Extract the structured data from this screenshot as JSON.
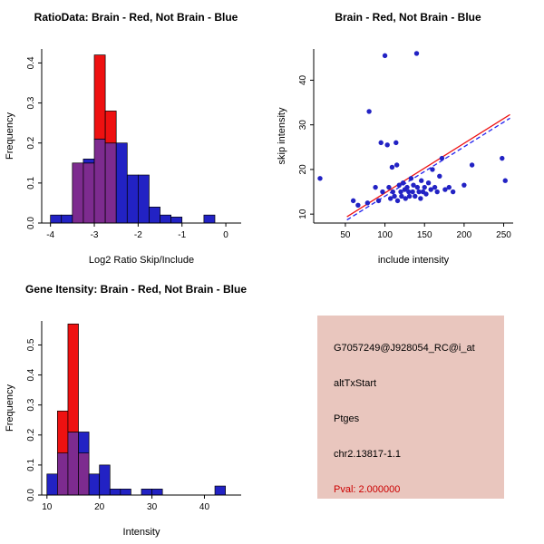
{
  "chart_data": [
    {
      "type": "bar",
      "subtype": "overlaid-histogram",
      "title": "RatioData: Brain - Red, Not Brain - Blue",
      "xlabel": "Log2 Ratio Skip/Include",
      "ylabel": "Frequency",
      "xlim": [
        -4.2,
        0.35
      ],
      "ylim": [
        0,
        0.435
      ],
      "xticks": [
        -4,
        -3,
        -2,
        -1,
        0
      ],
      "xtick_labels": [
        "-4",
        "-3",
        "-2",
        "-1",
        "0"
      ],
      "yticks": [
        0,
        0.1,
        0.2,
        0.3,
        0.4
      ],
      "ytick_labels": [
        "0.0",
        "0.1",
        "0.2",
        "0.3",
        "0.4"
      ],
      "bin_width": 0.25,
      "overlap_color": "#7D2B8F",
      "grid": false,
      "series": [
        {
          "name": "Not Brain",
          "color": "#2222C4",
          "bins": [
            [
              -4.0,
              0.02
            ],
            [
              -3.75,
              0.02
            ],
            [
              -3.5,
              0.15
            ],
            [
              -3.25,
              0.16
            ],
            [
              -3.0,
              0.21
            ],
            [
              -2.75,
              0.2
            ],
            [
              -2.5,
              0.2
            ],
            [
              -2.25,
              0.12
            ],
            [
              -2.0,
              0.12
            ],
            [
              -1.75,
              0.04
            ],
            [
              -1.5,
              0.02
            ],
            [
              -1.25,
              0.015
            ],
            [
              -0.5,
              0.02
            ]
          ]
        },
        {
          "name": "Brain",
          "color": "#EE1111",
          "bins": [
            [
              -3.5,
              0.15
            ],
            [
              -3.25,
              0.15
            ],
            [
              -3.0,
              0.42
            ],
            [
              -2.75,
              0.28
            ]
          ]
        }
      ]
    },
    {
      "type": "scatter",
      "title": "Brain - Red, Not Brain - Blue",
      "xlabel": "include intensity",
      "ylabel": "skip intensity",
      "xlim": [
        10,
        262
      ],
      "ylim": [
        8,
        47
      ],
      "xticks": [
        50,
        100,
        150,
        200,
        250
      ],
      "xtick_labels": [
        "50",
        "100",
        "150",
        "200",
        "250"
      ],
      "yticks": [
        10,
        20,
        30,
        40
      ],
      "ytick_labels": [
        "10",
        "20",
        "30",
        "40"
      ],
      "point_color": "#2222C4",
      "grid": false,
      "points": [
        [
          18,
          18
        ],
        [
          60,
          13
        ],
        [
          66,
          12
        ],
        [
          78,
          12.5
        ],
        [
          80,
          33
        ],
        [
          88,
          16
        ],
        [
          92,
          13
        ],
        [
          95,
          26
        ],
        [
          97,
          15
        ],
        [
          100,
          45.5
        ],
        [
          103,
          25.5
        ],
        [
          105,
          16
        ],
        [
          107,
          13.5
        ],
        [
          109,
          20.5
        ],
        [
          110,
          15
        ],
        [
          112,
          14
        ],
        [
          114,
          26
        ],
        [
          115,
          21
        ],
        [
          116,
          13
        ],
        [
          118,
          16.5
        ],
        [
          120,
          15
        ],
        [
          121,
          14
        ],
        [
          123,
          17
        ],
        [
          125,
          15.5
        ],
        [
          126,
          13.5
        ],
        [
          128,
          16
        ],
        [
          130,
          15
        ],
        [
          131,
          14
        ],
        [
          133,
          18
        ],
        [
          135,
          15
        ],
        [
          136,
          16.5
        ],
        [
          138,
          14
        ],
        [
          140,
          46
        ],
        [
          141,
          16
        ],
        [
          143,
          15
        ],
        [
          145,
          13.5
        ],
        [
          146,
          17.5
        ],
        [
          148,
          15
        ],
        [
          150,
          16
        ],
        [
          152,
          14.5
        ],
        [
          155,
          17
        ],
        [
          158,
          15.5
        ],
        [
          160,
          20
        ],
        [
          163,
          16
        ],
        [
          166,
          15
        ],
        [
          169,
          18.5
        ],
        [
          172,
          22.5
        ],
        [
          176,
          15.5
        ],
        [
          181,
          16
        ],
        [
          186,
          15
        ],
        [
          200,
          16.5
        ],
        [
          210,
          21
        ],
        [
          248,
          22.5
        ],
        [
          252,
          17.5
        ]
      ],
      "lines": [
        {
          "name": "brain-fit-line",
          "color": "#EE1111",
          "dash": "",
          "x1": 52,
          "y1": 9.4,
          "x2": 258,
          "y2": 32.3
        },
        {
          "name": "notbrain-fit-line",
          "color": "#2222EE",
          "dash": "5,3",
          "x1": 52,
          "y1": 8.7,
          "x2": 258,
          "y2": 31.5
        }
      ]
    },
    {
      "type": "bar",
      "subtype": "overlaid-histogram",
      "title": "Gene Itensity: Brain - Red, Not Brain - Blue",
      "xlabel": "Intensity",
      "ylabel": "Frequency",
      "xlim": [
        9,
        47
      ],
      "ylim": [
        0,
        0.58
      ],
      "xticks": [
        10,
        20,
        30,
        40
      ],
      "xtick_labels": [
        "10",
        "20",
        "30",
        "40"
      ],
      "yticks": [
        0,
        0.1,
        0.2,
        0.3,
        0.4,
        0.5
      ],
      "ytick_labels": [
        "0.0",
        "0.1",
        "0.2",
        "0.3",
        "0.4",
        "0.5"
      ],
      "bin_width": 2,
      "overlap_color": "#7D2B8F",
      "grid": false,
      "series": [
        {
          "name": "Not Brain",
          "color": "#2222C4",
          "bins": [
            [
              10,
              0.07
            ],
            [
              12,
              0.14
            ],
            [
              14,
              0.21
            ],
            [
              16,
              0.21
            ],
            [
              18,
              0.07
            ],
            [
              20,
              0.1
            ],
            [
              22,
              0.02
            ],
            [
              24,
              0.02
            ],
            [
              28,
              0.02
            ],
            [
              30,
              0.02
            ],
            [
              42,
              0.03
            ]
          ]
        },
        {
          "name": "Brain",
          "color": "#EE1111",
          "bins": [
            [
              12,
              0.28
            ],
            [
              14,
              0.57
            ],
            [
              16,
              0.14
            ]
          ]
        }
      ]
    }
  ],
  "info_box": {
    "bg": "#E9C6BE",
    "lines": [
      {
        "id": "probe-id",
        "text": "G7057249@J928054_RC@i_at",
        "color": "#000000"
      },
      {
        "id": "event-type",
        "text": "altTxStart",
        "color": "#000000"
      },
      {
        "id": "gene-symbol",
        "text": "Ptges",
        "color": "#000000"
      },
      {
        "id": "chromosome-location",
        "text": "chr2.13817-1.1",
        "color": "#000000"
      },
      {
        "id": "pvalue",
        "text": "Pval: 2.000000",
        "color": "#CC0000"
      }
    ]
  }
}
